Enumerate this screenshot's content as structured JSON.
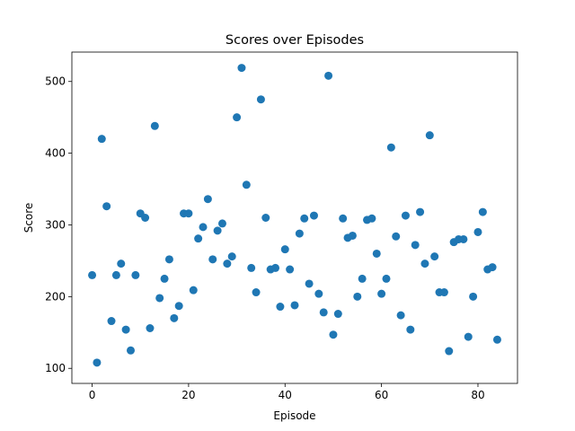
{
  "chart_data": {
    "type": "scatter",
    "title": "Scores over Episodes",
    "xlabel": "Episode",
    "ylabel": "Score",
    "xlim": [
      -4.2,
      88.2
    ],
    "ylim": [
      79,
      541
    ],
    "xticks": [
      0,
      20,
      40,
      60,
      80
    ],
    "yticks": [
      100,
      200,
      300,
      400,
      500
    ],
    "grid": false,
    "marker_color": "#1f77b4",
    "series": [
      {
        "x": [
          0,
          1,
          2,
          3,
          4,
          5,
          6,
          7,
          8,
          9,
          10,
          11,
          12,
          13,
          14,
          15,
          16,
          17,
          18,
          19,
          20,
          21,
          22,
          23,
          24,
          25,
          26,
          27,
          28,
          29,
          30,
          31,
          32,
          33,
          34,
          35,
          36,
          37,
          38,
          39,
          40,
          41,
          42,
          43,
          44,
          45,
          46,
          47,
          48,
          49,
          50,
          51,
          52,
          53,
          54,
          55,
          56,
          57,
          58,
          59,
          60,
          61,
          62,
          63,
          64,
          65,
          66,
          67,
          68,
          69,
          70,
          71,
          72,
          73,
          74,
          75,
          76,
          77,
          78,
          79,
          80,
          81,
          82,
          83,
          84
        ],
        "y": [
          230,
          108,
          420,
          326,
          166,
          230,
          246,
          154,
          125,
          230,
          316,
          310,
          156,
          438,
          198,
          225,
          252,
          170,
          187,
          316,
          316,
          209,
          281,
          297,
          336,
          252,
          292,
          302,
          246,
          256,
          450,
          519,
          356,
          240,
          206,
          475,
          310,
          238,
          240,
          186,
          266,
          238,
          188,
          288,
          309,
          218,
          313,
          204,
          178,
          508,
          147,
          176,
          309,
          282,
          285,
          200,
          225,
          307,
          309,
          260,
          204,
          225,
          408,
          284,
          174,
          313,
          154,
          272,
          318,
          246,
          425,
          256,
          206,
          206,
          124,
          276,
          280,
          280,
          144,
          200,
          290,
          318,
          238,
          241,
          140
        ]
      }
    ]
  }
}
